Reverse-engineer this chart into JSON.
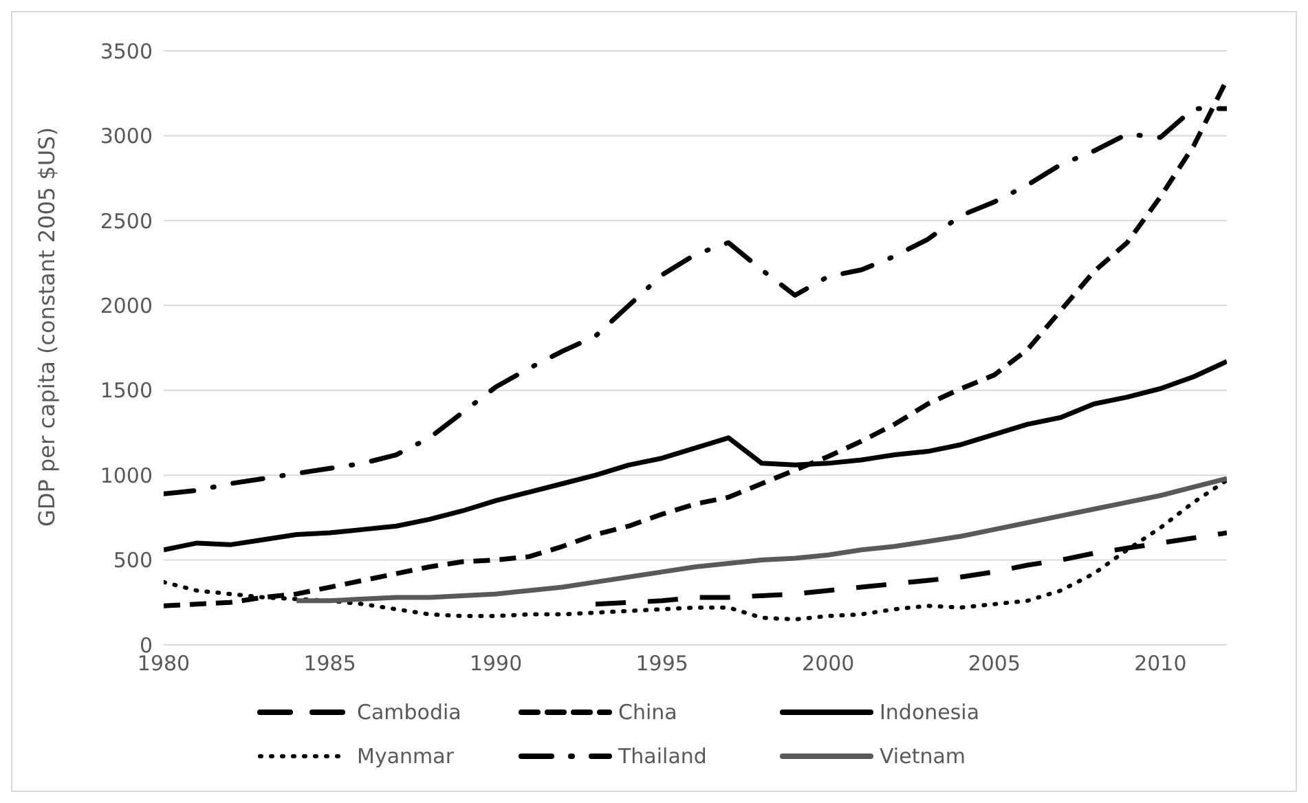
{
  "chart_data": {
    "type": "line",
    "ylabel": "GDP per capita (constant 2005 $US)",
    "x": [
      1980,
      1981,
      1982,
      1983,
      1984,
      1985,
      1986,
      1987,
      1988,
      1989,
      1990,
      1991,
      1992,
      1993,
      1994,
      1995,
      1996,
      1997,
      1998,
      1999,
      2000,
      2001,
      2002,
      2003,
      2004,
      2005,
      2006,
      2007,
      2008,
      2009,
      2010,
      2011,
      2012
    ],
    "xlim": [
      1980,
      2012
    ],
    "xticks": [
      1980,
      1985,
      1990,
      1995,
      2000,
      2005,
      2010
    ],
    "ylim": [
      0,
      3500
    ],
    "yticks": [
      0,
      500,
      1000,
      1500,
      2000,
      2500,
      3000,
      3500
    ],
    "grid": "y",
    "legend": "bottom",
    "series": [
      {
        "name": "Cambodia",
        "color": "#000000",
        "line_style": "longdash",
        "values": [
          null,
          null,
          null,
          null,
          null,
          null,
          null,
          null,
          null,
          null,
          null,
          null,
          null,
          240,
          250,
          260,
          280,
          280,
          290,
          300,
          320,
          340,
          360,
          380,
          400,
          430,
          470,
          500,
          540,
          570,
          600,
          630,
          660
        ]
      },
      {
        "name": "China",
        "color": "#000000",
        "line_style": "dashed",
        "values": [
          230,
          240,
          250,
          280,
          300,
          340,
          380,
          420,
          460,
          490,
          500,
          520,
          580,
          650,
          700,
          770,
          830,
          870,
          950,
          1030,
          1110,
          1200,
          1300,
          1420,
          1510,
          1590,
          1740,
          1970,
          2200,
          2370,
          2640,
          2940,
          3330
        ]
      },
      {
        "name": "Indonesia",
        "color": "#000000",
        "line_style": "solid",
        "values": [
          560,
          600,
          590,
          620,
          650,
          660,
          680,
          700,
          740,
          790,
          850,
          900,
          950,
          1000,
          1060,
          1100,
          1160,
          1220,
          1070,
          1060,
          1070,
          1090,
          1120,
          1140,
          1180,
          1240,
          1300,
          1340,
          1420,
          1460,
          1510,
          1580,
          1670
        ]
      },
      {
        "name": "Myanmar",
        "color": "#000000",
        "line_style": "dotted",
        "values": [
          370,
          320,
          300,
          280,
          270,
          260,
          240,
          210,
          180,
          170,
          170,
          180,
          180,
          190,
          200,
          210,
          220,
          220,
          160,
          150,
          170,
          180,
          210,
          230,
          220,
          240,
          260,
          320,
          420,
          560,
          690,
          840,
          970
        ]
      },
      {
        "name": "Thailand",
        "color": "#000000",
        "line_style": "dashdot",
        "values": [
          890,
          910,
          950,
          980,
          1010,
          1040,
          1070,
          1120,
          1220,
          1370,
          1520,
          1630,
          1730,
          1820,
          2000,
          2180,
          2300,
          2370,
          2210,
          2060,
          2170,
          2210,
          2290,
          2390,
          2530,
          2610,
          2710,
          2830,
          2910,
          3010,
          2990,
          3160,
          3160
        ]
      },
      {
        "name": "Vietnam",
        "color": "#595959",
        "line_style": "solid",
        "values": [
          null,
          null,
          null,
          null,
          260,
          260,
          270,
          280,
          280,
          290,
          300,
          320,
          340,
          370,
          400,
          430,
          460,
          480,
          500,
          510,
          530,
          560,
          580,
          610,
          640,
          680,
          720,
          760,
          800,
          840,
          880,
          930,
          980
        ]
      }
    ]
  }
}
